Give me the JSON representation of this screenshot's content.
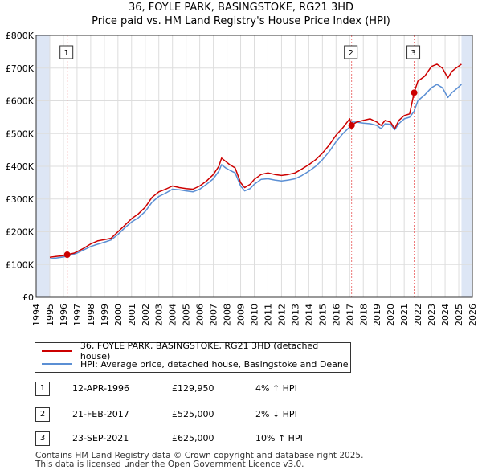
{
  "title_line1": "36, FOYLE PARK, BASINGSTOKE, RG21 3HD",
  "title_line2": "Price paid vs. HM Land Registry's House Price Index (HPI)",
  "colors": {
    "property": "#cc0000",
    "hpi": "#5b8fd4",
    "shade": "#dde6f5",
    "grid": "#dddddd",
    "marker_line": "#ee7777"
  },
  "chart_data": {
    "type": "line",
    "xlabel": "",
    "ylabel": "",
    "xlim": [
      1994,
      2026
    ],
    "ylim": [
      0,
      800000
    ],
    "x_ticks": [
      "1994",
      "1995",
      "1996",
      "1997",
      "1998",
      "1999",
      "2000",
      "2001",
      "2002",
      "2003",
      "2004",
      "2005",
      "2006",
      "2007",
      "2008",
      "2009",
      "2010",
      "2011",
      "2012",
      "2013",
      "2014",
      "2015",
      "2016",
      "2017",
      "2018",
      "2019",
      "2020",
      "2021",
      "2022",
      "2023",
      "2024",
      "2025",
      "2026"
    ],
    "y_ticks": [
      {
        "value": 0,
        "label": "£0"
      },
      {
        "value": 100000,
        "label": "£100K"
      },
      {
        "value": 200000,
        "label": "£200K"
      },
      {
        "value": 300000,
        "label": "£300K"
      },
      {
        "value": 400000,
        "label": "£400K"
      },
      {
        "value": 500000,
        "label": "£500K"
      },
      {
        "value": 600000,
        "label": "£600K"
      },
      {
        "value": 700000,
        "label": "£700K"
      },
      {
        "value": 800000,
        "label": "£800K"
      }
    ],
    "shaded_ranges": [
      [
        1994,
        1995
      ],
      [
        2025.2,
        2026
      ]
    ],
    "series": [
      {
        "name": "36, FOYLE PARK, BASINGSTOKE, RG21 3HD (detached house)",
        "color": "#cc0000",
        "points": [
          [
            1995.0,
            122000
          ],
          [
            1995.5,
            125000
          ],
          [
            1996.0,
            127000
          ],
          [
            1996.28,
            129950
          ],
          [
            1996.8,
            135000
          ],
          [
            1997.5,
            150000
          ],
          [
            1998.0,
            163000
          ],
          [
            1998.5,
            172000
          ],
          [
            1999.0,
            176000
          ],
          [
            1999.5,
            180000
          ],
          [
            2000.0,
            200000
          ],
          [
            2000.5,
            220000
          ],
          [
            2001.0,
            240000
          ],
          [
            2001.5,
            255000
          ],
          [
            2002.0,
            275000
          ],
          [
            2002.5,
            305000
          ],
          [
            2003.0,
            322000
          ],
          [
            2003.5,
            330000
          ],
          [
            2004.0,
            340000
          ],
          [
            2004.5,
            335000
          ],
          [
            2005.0,
            332000
          ],
          [
            2005.5,
            330000
          ],
          [
            2006.0,
            340000
          ],
          [
            2006.5,
            355000
          ],
          [
            2007.0,
            375000
          ],
          [
            2007.4,
            400000
          ],
          [
            2007.6,
            425000
          ],
          [
            2007.9,
            415000
          ],
          [
            2008.2,
            405000
          ],
          [
            2008.6,
            395000
          ],
          [
            2009.0,
            350000
          ],
          [
            2009.3,
            335000
          ],
          [
            2009.7,
            345000
          ],
          [
            2010.0,
            360000
          ],
          [
            2010.5,
            375000
          ],
          [
            2011.0,
            380000
          ],
          [
            2011.5,
            375000
          ],
          [
            2012.0,
            372000
          ],
          [
            2012.5,
            375000
          ],
          [
            2013.0,
            380000
          ],
          [
            2013.5,
            392000
          ],
          [
            2014.0,
            405000
          ],
          [
            2014.5,
            420000
          ],
          [
            2015.0,
            440000
          ],
          [
            2015.5,
            465000
          ],
          [
            2016.0,
            495000
          ],
          [
            2016.5,
            518000
          ],
          [
            2017.0,
            545000
          ],
          [
            2017.14,
            525000
          ],
          [
            2017.5,
            535000
          ],
          [
            2018.0,
            540000
          ],
          [
            2018.5,
            545000
          ],
          [
            2019.0,
            535000
          ],
          [
            2019.3,
            525000
          ],
          [
            2019.6,
            540000
          ],
          [
            2020.0,
            535000
          ],
          [
            2020.3,
            515000
          ],
          [
            2020.6,
            540000
          ],
          [
            2021.0,
            555000
          ],
          [
            2021.4,
            560000
          ],
          [
            2021.73,
            625000
          ],
          [
            2022.0,
            660000
          ],
          [
            2022.5,
            675000
          ],
          [
            2023.0,
            705000
          ],
          [
            2023.4,
            712000
          ],
          [
            2023.8,
            700000
          ],
          [
            2024.2,
            670000
          ],
          [
            2024.5,
            690000
          ],
          [
            2024.8,
            700000
          ],
          [
            2025.2,
            712000
          ]
        ]
      },
      {
        "name": "HPI: Average price, detached house, Basingstoke and Deane",
        "color": "#5b8fd4",
        "points": [
          [
            1995.0,
            117000
          ],
          [
            1995.5,
            120000
          ],
          [
            1996.0,
            123000
          ],
          [
            1996.5,
            128000
          ],
          [
            1997.0,
            135000
          ],
          [
            1997.5,
            145000
          ],
          [
            1998.0,
            155000
          ],
          [
            1998.5,
            162000
          ],
          [
            1999.0,
            168000
          ],
          [
            1999.5,
            175000
          ],
          [
            2000.0,
            192000
          ],
          [
            2000.5,
            212000
          ],
          [
            2001.0,
            230000
          ],
          [
            2001.5,
            243000
          ],
          [
            2002.0,
            262000
          ],
          [
            2002.5,
            290000
          ],
          [
            2003.0,
            308000
          ],
          [
            2003.5,
            318000
          ],
          [
            2004.0,
            330000
          ],
          [
            2004.5,
            328000
          ],
          [
            2005.0,
            325000
          ],
          [
            2005.5,
            322000
          ],
          [
            2006.0,
            330000
          ],
          [
            2006.5,
            345000
          ],
          [
            2007.0,
            362000
          ],
          [
            2007.4,
            385000
          ],
          [
            2007.6,
            405000
          ],
          [
            2007.9,
            395000
          ],
          [
            2008.2,
            388000
          ],
          [
            2008.6,
            380000
          ],
          [
            2009.0,
            340000
          ],
          [
            2009.3,
            325000
          ],
          [
            2009.7,
            332000
          ],
          [
            2010.0,
            345000
          ],
          [
            2010.5,
            360000
          ],
          [
            2011.0,
            362000
          ],
          [
            2011.5,
            358000
          ],
          [
            2012.0,
            355000
          ],
          [
            2012.5,
            358000
          ],
          [
            2013.0,
            362000
          ],
          [
            2013.5,
            372000
          ],
          [
            2014.0,
            385000
          ],
          [
            2014.5,
            400000
          ],
          [
            2015.0,
            420000
          ],
          [
            2015.5,
            445000
          ],
          [
            2016.0,
            475000
          ],
          [
            2016.5,
            500000
          ],
          [
            2017.0,
            520000
          ],
          [
            2017.14,
            535000
          ],
          [
            2017.5,
            535000
          ],
          [
            2018.0,
            532000
          ],
          [
            2018.5,
            530000
          ],
          [
            2019.0,
            525000
          ],
          [
            2019.3,
            515000
          ],
          [
            2019.6,
            530000
          ],
          [
            2020.0,
            528000
          ],
          [
            2020.3,
            512000
          ],
          [
            2020.6,
            530000
          ],
          [
            2021.0,
            545000
          ],
          [
            2021.4,
            550000
          ],
          [
            2021.73,
            568000
          ],
          [
            2022.0,
            600000
          ],
          [
            2022.5,
            618000
          ],
          [
            2023.0,
            640000
          ],
          [
            2023.4,
            650000
          ],
          [
            2023.8,
            640000
          ],
          [
            2024.2,
            610000
          ],
          [
            2024.5,
            625000
          ],
          [
            2024.8,
            635000
          ],
          [
            2025.2,
            650000
          ]
        ]
      }
    ],
    "transactions": [
      {
        "label": "1",
        "x": 1996.28,
        "price": 129950
      },
      {
        "label": "2",
        "x": 2017.14,
        "price": 525000
      },
      {
        "label": "3",
        "x": 2021.73,
        "price": 625000
      }
    ]
  },
  "legend": {
    "property_label": "36, FOYLE PARK, BASINGSTOKE, RG21 3HD (detached house)",
    "hpi_label": "HPI: Average price, detached house, Basingstoke and Deane"
  },
  "table": [
    {
      "num": "1",
      "date": "12-APR-1996",
      "price": "£129,950",
      "hpi": "4% ↑ HPI"
    },
    {
      "num": "2",
      "date": "21-FEB-2017",
      "price": "£525,000",
      "hpi": "2% ↓ HPI"
    },
    {
      "num": "3",
      "date": "23-SEP-2021",
      "price": "£625,000",
      "hpi": "10% ↑ HPI"
    }
  ],
  "footer": {
    "line1": "Contains HM Land Registry data © Crown copyright and database right 2025.",
    "line2": "This data is licensed under the Open Government Licence v3.0."
  }
}
